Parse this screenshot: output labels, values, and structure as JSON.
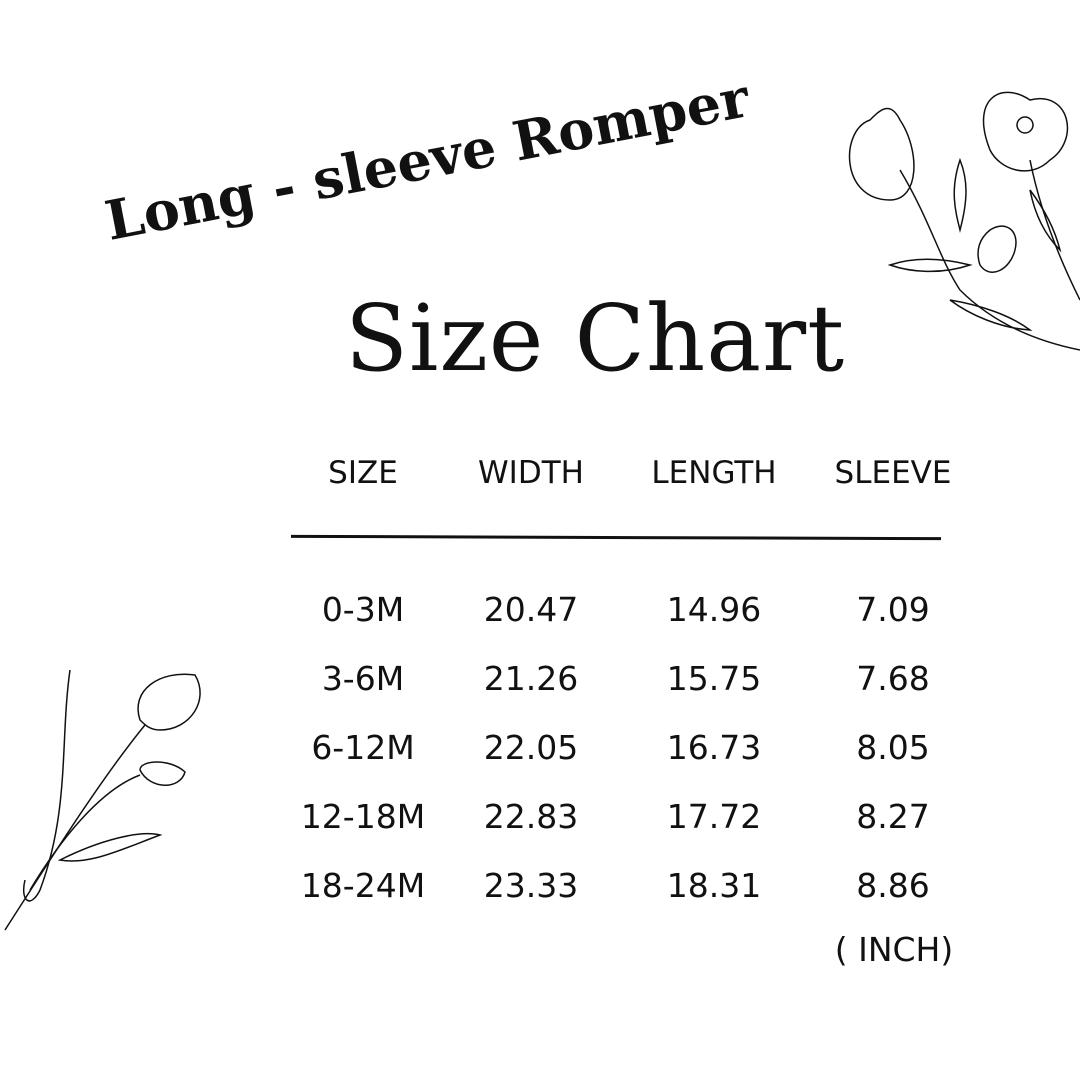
{
  "subtitle": "Long - sleeve Romper",
  "title": "Size Chart",
  "table": {
    "columns": [
      "SIZE",
      "WIDTH",
      "LENGTH",
      "SLEEVE"
    ],
    "rows": [
      [
        "0-3M",
        "20.47",
        "14.96",
        "7.09"
      ],
      [
        "3-6M",
        "21.26",
        "15.75",
        "7.68"
      ],
      [
        "6-12M",
        "22.05",
        "16.73",
        "8.05"
      ],
      [
        "12-18M",
        "22.83",
        "17.72",
        "8.27"
      ],
      [
        "18-24M",
        "23.33",
        "18.31",
        "8.86"
      ]
    ],
    "unit": "( INCH)"
  }
}
